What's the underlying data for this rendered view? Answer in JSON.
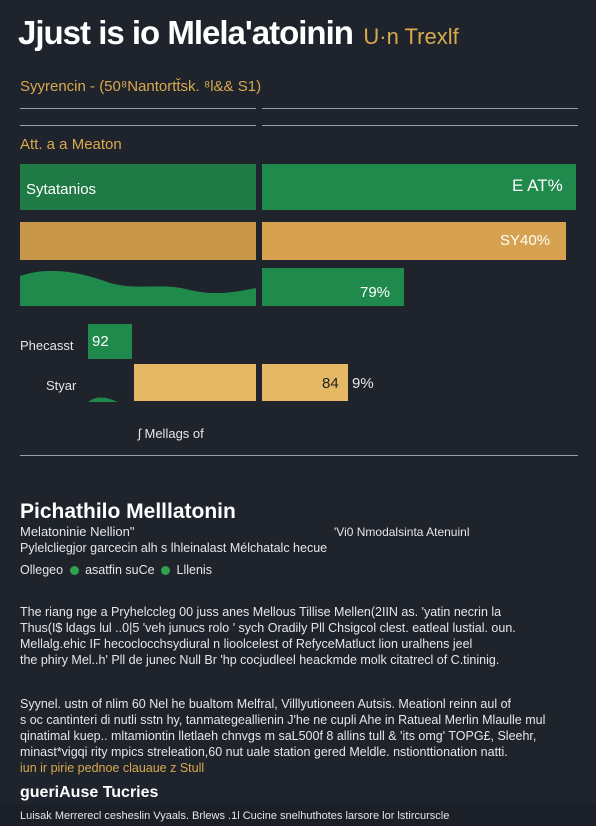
{
  "title": {
    "main": "Jjust is io Mlela'atoinin",
    "accent": "U·n Trexlf"
  },
  "subtitle": "Syyrencin - (50⁸Nantortt̆sk. ⁸l&& S1)",
  "section_label": "Att. a a Meaton",
  "chart_data": {
    "type": "bar",
    "bars": [
      {
        "label": "Sytatanios",
        "value_text": "E AT%",
        "color": "#1f8a4c"
      },
      {
        "label": "",
        "value_text": "SY40%",
        "color": "#d6a24f"
      },
      {
        "label": "",
        "value_text": "79%",
        "color": "#1f8a4c"
      },
      {
        "label": "Phecasst",
        "value_text": "92",
        "color": "#1f8a4c"
      },
      {
        "label": "Styar",
        "value_text": "84",
        "value_text_2": "9%",
        "color": "#e5b866"
      }
    ],
    "footnote": "ʃ Mellags of"
  },
  "article": {
    "heading": "Pichathilo Melllatonin",
    "sub_left": "Melatoninie Nellion\"",
    "sub_right": "'Vi0 Nmodalsinta Atenuinl",
    "line1": "Pylelcliegjor garcecin  alh  s lhleinalast Mélchatalc hecue",
    "legend_a": "Ollegeo",
    "legend_b": "asatfin suCe",
    "legend_c": "Lllenis",
    "para1": [
      "The riang nge a Pryhelccleg 00 juss anes Mellous Tillise Mellen(2IIN as. 'yatin necrin la",
      "Thus(I$ ldags lul ..0|5 'veh junucs rolo ' sych Oradily  Pll Chsigcol clest. eatleal lustial. oun.",
      "Mellalg.ehic IF hecoclocchsydiural n lioolcelest of RefyceMatluct lion uralhens jeel",
      "the phiry  Mel..h' Pll de junec Null Br 'hp cocjudleel heackmde molk citatrecl of C.tininig."
    ],
    "para2": [
      "Syynel. ustn of  nlim 60  Nel  he bualtom Melfral, Villlyutioneen  Autsis. Meationl reinn aul  of",
      "s oc cantinteri di  nutli sstn  hy, tanmategeallienin  J'he ne cupli  Ahe in Ratueal Merlin Mlaulle mul",
      "qinatimal kuep.. mltamiontin lletlaeh chnvgs m saL500f 8 allins tull & 'its omg' TOPG£, Sleehr,",
      "minast*vigqi rity mpics streleation,60 nut uale station gered Meldle.  nstionttionation natti.",
      "iun ir pirie pednoe  clauaue z Stull"
    ],
    "heading2": "gueriAuse Tucries",
    "footer": "Luisak  Merrerecl  cesheslin   Vyaals.  Brlews  .1l Cucine snelhuthotes larsore lor lstircurscle"
  }
}
